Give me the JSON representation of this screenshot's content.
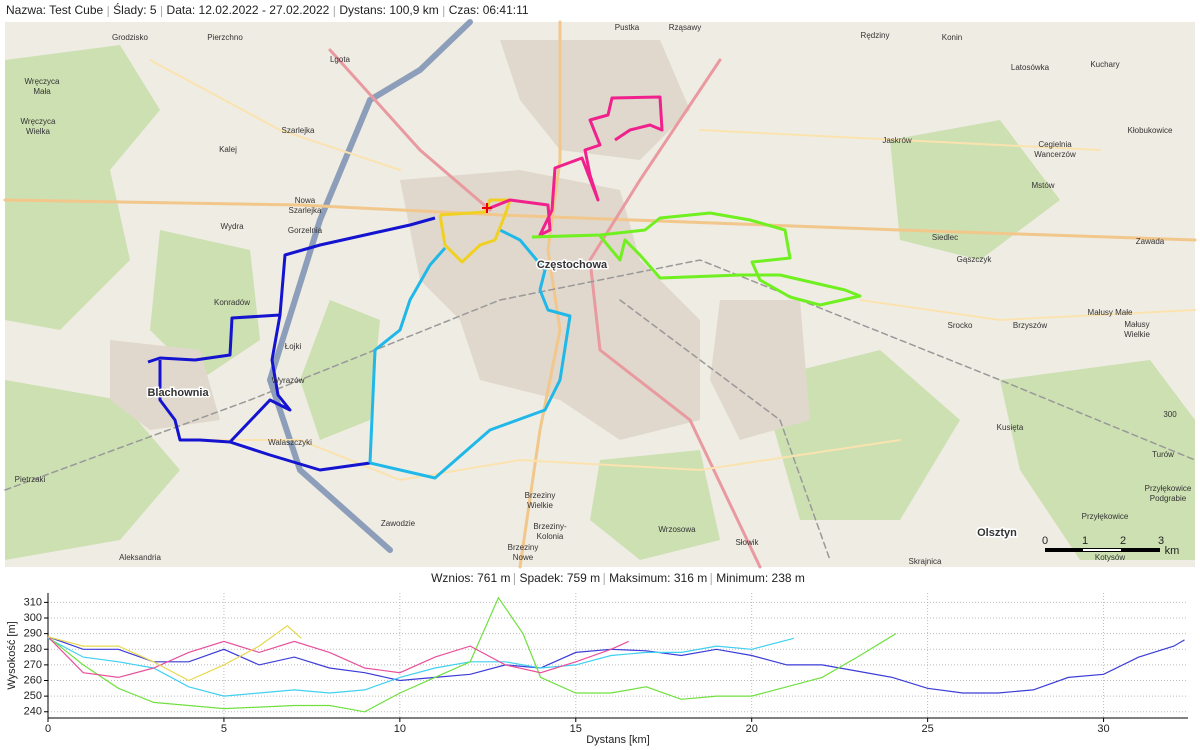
{
  "header": {
    "items": [
      "Nazwa: Test Cube",
      "Ślady: 5",
      "Data: 12.02.2022 - 27.02.2022",
      "Dystans: 100,9 km",
      "Czas: 06:41:11"
    ]
  },
  "map": {
    "labels": [
      "Grodzisko",
      "Pierzchno",
      "Lgota",
      "Pustka",
      "Rząsawy",
      "Rędziny",
      "Konin",
      "Wręczyca",
      "Mała",
      "Latosówka",
      "Kuchary",
      "Wręczyca",
      "Wielka",
      "Szarlejka",
      "Kalej",
      "Jaskrów",
      "Cegielnia",
      "Wancerzów",
      "Kłobukowice",
      "Mstów",
      "Nowa",
      "Szarlejka",
      "Gorzelnia",
      "Wydra",
      "Częstochowa",
      "Siedlec",
      "Zawada",
      "Gąszczyk",
      "Konradów",
      "Srocko",
      "Brzyszów",
      "Małusy Małe",
      "Małusy",
      "Wielkie",
      "Łojki",
      "Wyrazów",
      "Blachownia",
      "Walaszczyki",
      "Kusięta",
      "Turów",
      "Przyłękowice",
      "Podgrabie",
      "Pietrzaki",
      "Brzeziny",
      "Wielkie",
      "Zawodzie",
      "Brzeziny-",
      "Kolonia",
      "Wrzosowa",
      "Olsztyn",
      "Przyłękowice",
      "Słowik",
      "Brzeziny",
      "Nowe",
      "Aleksandria",
      "Skrajnica",
      "Kotysów",
      "300"
    ],
    "scale_labels": [
      "0",
      "1",
      "2",
      "3",
      "km"
    ]
  },
  "elevation_stats": [
    "Wznios: 761 m",
    "Spadek: 759 m",
    "Maksimum: 316 m",
    "Minimum: 238 m"
  ],
  "chart_data": {
    "type": "line",
    "xlabel": "Dystans [km]",
    "ylabel": "Wysokość [m]",
    "xlim": [
      0,
      32.4
    ],
    "ylim": [
      236,
      316
    ],
    "xticks": [
      0,
      5,
      10,
      15,
      20,
      25,
      30
    ],
    "yticks": [
      240,
      250,
      260,
      270,
      280,
      290,
      300,
      310
    ],
    "grid": true,
    "series": [
      {
        "color": "#3c3cd8",
        "x": [
          0,
          1,
          2,
          3,
          4,
          5,
          6,
          7,
          8,
          9,
          10,
          11,
          12,
          13,
          14,
          15,
          16,
          17,
          18,
          19,
          20,
          21,
          22,
          23,
          24,
          25,
          26,
          27,
          28,
          29,
          30,
          31,
          32,
          32.3
        ],
        "values": [
          288,
          280,
          280,
          272,
          272,
          280,
          270,
          275,
          268,
          265,
          260,
          262,
          264,
          270,
          268,
          278,
          280,
          279,
          276,
          280,
          276,
          270,
          270,
          266,
          262,
          255,
          252,
          252,
          254,
          262,
          264,
          275,
          282,
          286
        ]
      },
      {
        "color": "#40d0f0",
        "x": [
          0,
          1,
          2,
          3,
          4,
          5,
          6,
          7,
          8,
          9,
          10,
          11,
          12,
          13,
          14,
          15,
          16,
          17,
          18,
          19,
          20,
          21.2
        ],
        "values": [
          287,
          275,
          272,
          268,
          256,
          250,
          252,
          254,
          252,
          254,
          262,
          268,
          272,
          272,
          268,
          270,
          276,
          278,
          278,
          282,
          280,
          287
        ]
      },
      {
        "color": "#70e040",
        "x": [
          0,
          1,
          2,
          3,
          4,
          5,
          6,
          7,
          8,
          9,
          10,
          11,
          12,
          12.8,
          13.5,
          14,
          15,
          16,
          17,
          18,
          19,
          20,
          21,
          22,
          23,
          24.1
        ],
        "values": [
          288,
          270,
          255,
          246,
          244,
          242,
          243,
          244,
          244,
          240,
          252,
          262,
          272,
          313,
          290,
          262,
          252,
          252,
          256,
          248,
          250,
          250,
          256,
          262,
          275,
          290
        ]
      },
      {
        "color": "#e8509c",
        "x": [
          0,
          1,
          2,
          3,
          4,
          5,
          6,
          7,
          8,
          9,
          10,
          11,
          12,
          13,
          14,
          15,
          16,
          16.5
        ],
        "values": [
          288,
          265,
          262,
          268,
          278,
          285,
          278,
          285,
          278,
          268,
          265,
          275,
          282,
          270,
          265,
          272,
          280,
          285
        ]
      },
      {
        "color": "#e8d850",
        "x": [
          0,
          1,
          2,
          3,
          4,
          5,
          6,
          6.8,
          7.2
        ],
        "values": [
          288,
          282,
          282,
          272,
          260,
          270,
          282,
          295,
          287
        ]
      }
    ]
  }
}
